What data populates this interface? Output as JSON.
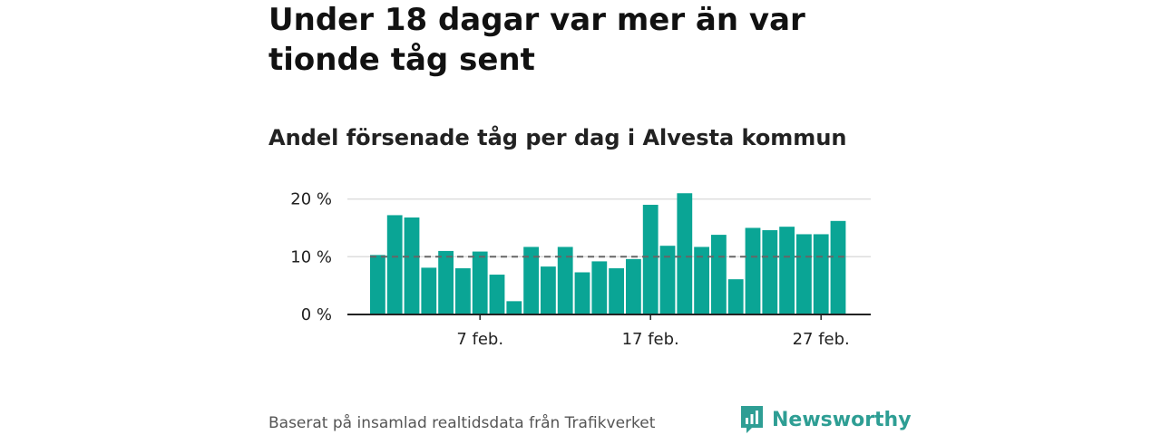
{
  "headline": "Under 18 dagar var mer än var tionde tåg sent",
  "subtitle": "Andel försenade tåg per dag i Alvesta kommun",
  "source": "Baserat på insamlad realtidsdata från Trafikverket",
  "brand": {
    "name": "Newsworthy",
    "icon": "newsworthy-logo-icon"
  },
  "colors": {
    "bar": "#0aa595",
    "reference": "#666666",
    "grid": "#dddddd",
    "brand": "#2e9e94"
  },
  "chart_data": {
    "type": "bar",
    "title": "",
    "xlabel": "",
    "ylabel": "",
    "x_ticks": [
      {
        "day": 7,
        "label": "7 feb."
      },
      {
        "day": 17,
        "label": "17 feb."
      },
      {
        "day": 27,
        "label": "27 feb."
      }
    ],
    "y_ticks": [
      {
        "value": 0,
        "label": "0 %"
      },
      {
        "value": 10,
        "label": "10 %"
      },
      {
        "value": 20,
        "label": "20 %"
      }
    ],
    "ylim": [
      0,
      21
    ],
    "reference_line": {
      "value": 10,
      "style": "dashed"
    },
    "grid": true,
    "categories": [
      1,
      2,
      3,
      4,
      5,
      6,
      7,
      8,
      9,
      10,
      11,
      12,
      13,
      14,
      15,
      16,
      17,
      18,
      19,
      20,
      21,
      22,
      23,
      24,
      25,
      26,
      27,
      28
    ],
    "values": [
      10.3,
      17.2,
      16.8,
      8.1,
      11.0,
      8.0,
      10.9,
      6.9,
      2.3,
      11.7,
      8.3,
      11.7,
      7.3,
      9.2,
      8.0,
      9.6,
      19.0,
      11.9,
      21.0,
      11.7,
      13.8,
      6.1,
      15.0,
      14.6,
      15.2,
      13.9,
      13.9,
      16.2
    ]
  }
}
